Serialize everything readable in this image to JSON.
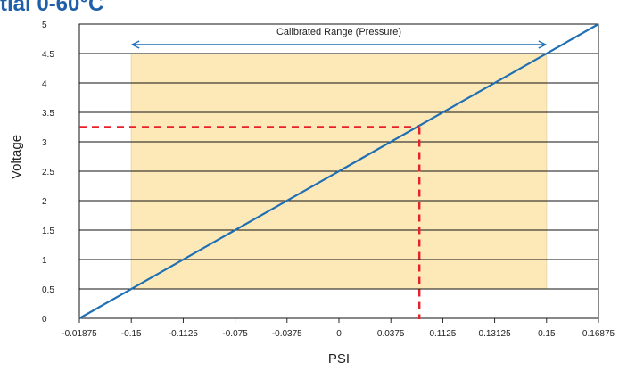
{
  "chart_data": {
    "type": "line",
    "title": "tial 0-60°C",
    "xlabel": "PSI",
    "ylabel": "Voltage",
    "x_tick_labels": [
      "-0.01875",
      "-0.15",
      "-0.1125",
      "-0.075",
      "-0.0375",
      "0",
      "0.0375",
      "0.1125",
      "0.13125",
      "0.15",
      "0.16875"
    ],
    "y_tick_labels": [
      "0",
      "0.5",
      "1",
      "1.5",
      "2",
      "2.5",
      "3",
      "3.5",
      "4",
      "4.5",
      "5"
    ],
    "ylim": [
      0,
      5
    ],
    "grid": "horizontal",
    "series": [
      {
        "x_tick_index": [
          0,
          10
        ],
        "values": [
          0,
          5
        ],
        "color": "#1f6fb5"
      }
    ],
    "calibrated_range": {
      "label": "Calibrated Range (Pressure)",
      "x_tick_index": [
        1,
        9
      ],
      "y": [
        0.5,
        4.5
      ],
      "fill": "#fde9b8",
      "arrow_color": "#1f6fb5"
    },
    "marker": {
      "x_tick_index": 6.55,
      "y": 3.25,
      "color": "#e8202a"
    }
  }
}
